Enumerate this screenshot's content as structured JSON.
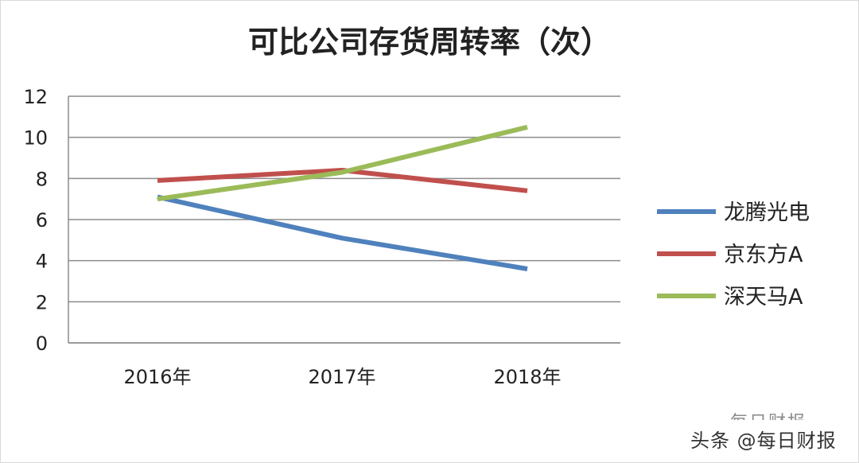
{
  "chart_data": {
    "type": "line",
    "title": "可比公司存货周转率（次）",
    "categories": [
      "2016年",
      "2017年",
      "2018年"
    ],
    "series": [
      {
        "name": "龙腾光电",
        "values": [
          7.1,
          5.1,
          3.6
        ],
        "color": "#4f81bd"
      },
      {
        "name": "京东方A",
        "values": [
          7.9,
          8.4,
          7.4
        ],
        "color": "#c0504d"
      },
      {
        "name": "深天马A",
        "values": [
          7.0,
          8.3,
          10.5
        ],
        "color": "#9bbb59"
      }
    ],
    "ylim": [
      0,
      12
    ],
    "yticks": [
      0,
      2,
      4,
      6,
      8,
      10,
      12
    ],
    "grid": true,
    "legend": "right"
  },
  "watermark": {
    "text": "头条 @每日财报",
    "faded_text": "每日财报"
  }
}
